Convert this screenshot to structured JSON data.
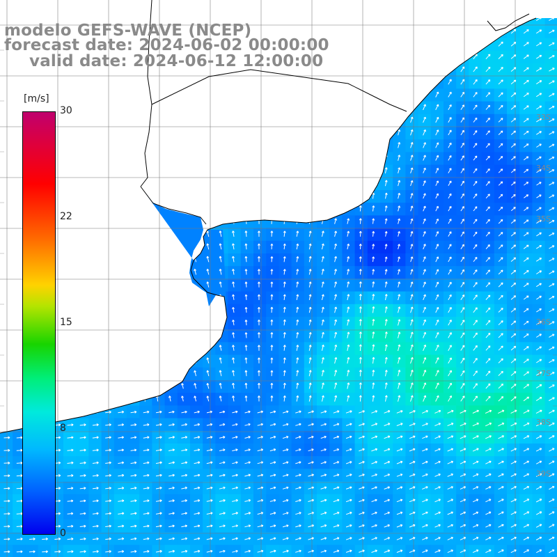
{
  "title": {
    "line1": "modelo GEFS-WAVE (NCEP)",
    "line2": "forecast date: 2024-06-02 00:00:00",
    "line3": "valid date: 2024-06-12 12:00:00"
  },
  "colorbar": {
    "unit": "[m/s]",
    "ticks": [
      "30",
      "22",
      "15",
      "8",
      "0"
    ],
    "min": 0,
    "max": 30,
    "colors": [
      "#0000ee",
      "#00b8ff",
      "#00eadc",
      "#18d400",
      "#ffd200",
      "#ff0000",
      "#c0006e"
    ]
  },
  "map": {
    "latitude_labels": [
      "33S",
      "34S",
      "35S",
      "36S",
      "37S",
      "38S",
      "39S"
    ],
    "field": "wind speed and direction",
    "land_color": "#ffffff",
    "arrow_color": "#ffffff"
  }
}
